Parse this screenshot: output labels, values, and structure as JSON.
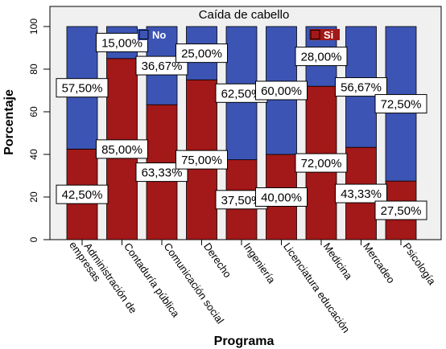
{
  "chart_data": {
    "type": "bar",
    "stacked": true,
    "title": "Caída de cabello",
    "xlabel": "Programa",
    "ylabel": "Porcentaje",
    "ylim": [
      0,
      100
    ],
    "yticks": [
      "0",
      "20",
      "40",
      "60",
      "80",
      "100"
    ],
    "grid": false,
    "legend_placement": "inside, top",
    "categories": [
      "Administración de empresas",
      "Contaduría pública",
      "Comunicación social",
      "Derecho",
      "Ingeniería",
      "Licenciatura educación",
      "Medicina",
      "Mercadeo",
      "Psicología"
    ],
    "series": [
      {
        "name": "Si",
        "color": "#a31818",
        "values": [
          42.5,
          85.0,
          63.33,
          75.0,
          37.5,
          40.0,
          72.0,
          43.33,
          27.5
        ],
        "labels": [
          "42,50%",
          "85,00%",
          "63,33%",
          "75,00%",
          "37,50%",
          "40,00%",
          "72,00%",
          "43,33%",
          "27,50%"
        ]
      },
      {
        "name": "No",
        "color": "#3c55b4",
        "values": [
          57.5,
          15.0,
          36.67,
          25.0,
          62.5,
          60.0,
          28.0,
          56.67,
          72.5
        ],
        "labels": [
          "57,50%",
          "15,00%",
          "36,67%",
          "25,00%",
          "62,50%",
          "60,00%",
          "28,00%",
          "56,67%",
          "72,50%"
        ]
      }
    ]
  }
}
